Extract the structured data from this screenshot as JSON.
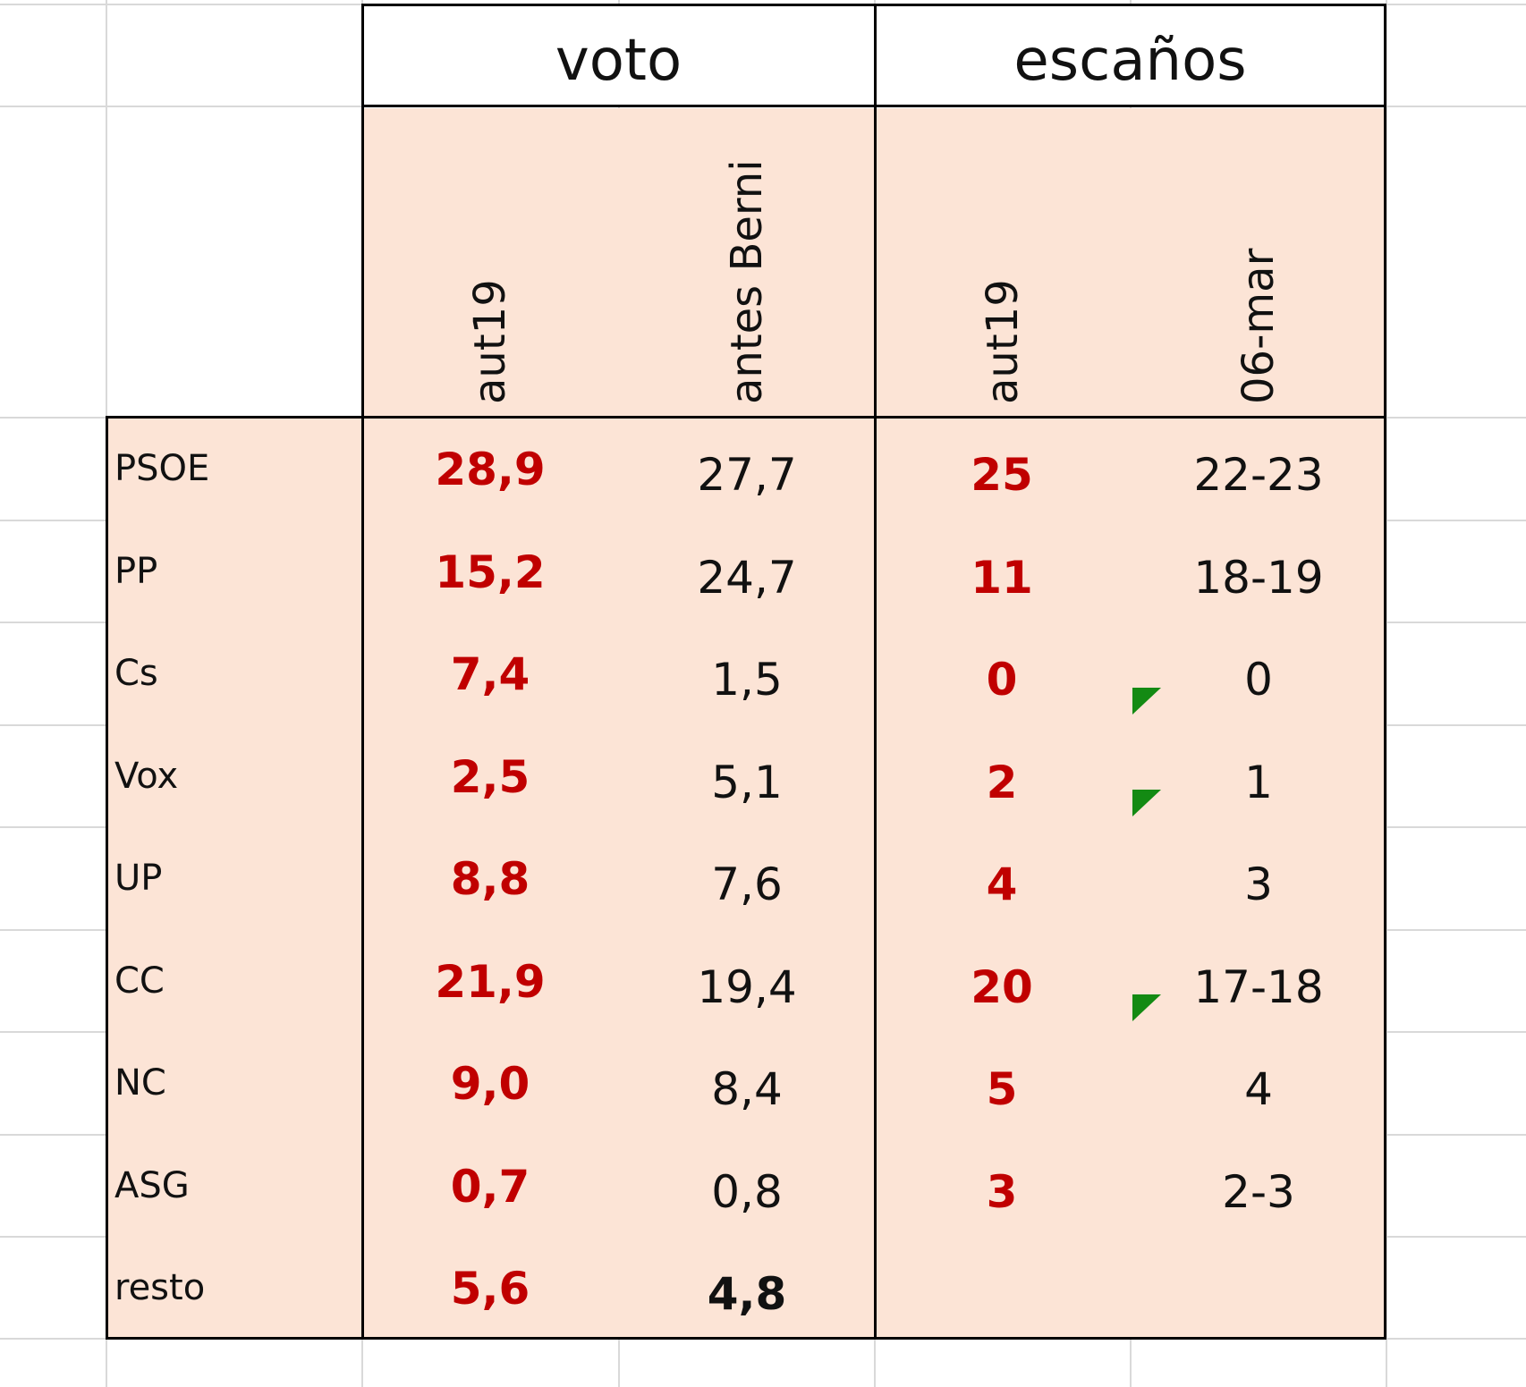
{
  "headers": {
    "voto": "voto",
    "escanos": "escaños",
    "cols": [
      "aut19",
      "antes Berni",
      "aut19",
      "06-mar"
    ]
  },
  "rows": [
    {
      "party": "PSOE",
      "voto_aut19": "28,9",
      "voto_antes": "27,7",
      "esc_aut19": "25",
      "esc_06mar": "22-23",
      "comment": false,
      "antes_bold": false
    },
    {
      "party": "PP",
      "voto_aut19": "15,2",
      "voto_antes": "24,7",
      "esc_aut19": "11",
      "esc_06mar": "18-19",
      "comment": false,
      "antes_bold": false
    },
    {
      "party": "Cs",
      "voto_aut19": "7,4",
      "voto_antes": "1,5",
      "esc_aut19": "0",
      "esc_06mar": "0",
      "comment": false,
      "antes_bold": false
    },
    {
      "party": "Vox",
      "voto_aut19": "2,5",
      "voto_antes": "5,1",
      "esc_aut19": "2",
      "esc_06mar": "1",
      "comment": true,
      "antes_bold": false
    },
    {
      "party": "UP",
      "voto_aut19": "8,8",
      "voto_antes": "7,6",
      "esc_aut19": "4",
      "esc_06mar": "3",
      "comment": true,
      "antes_bold": false
    },
    {
      "party": "CC",
      "voto_aut19": "21,9",
      "voto_antes": "19,4",
      "esc_aut19": "20",
      "esc_06mar": "17-18",
      "comment": false,
      "antes_bold": false
    },
    {
      "party": "NC",
      "voto_aut19": "9,0",
      "voto_antes": "8,4",
      "esc_aut19": "5",
      "esc_06mar": "4",
      "comment": true,
      "antes_bold": false
    },
    {
      "party": "ASG",
      "voto_aut19": "0,7",
      "voto_antes": "0,8",
      "esc_aut19": "3",
      "esc_06mar": "2-3",
      "comment": false,
      "antes_bold": false
    },
    {
      "party": "resto",
      "voto_aut19": "5,6",
      "voto_antes": "4,8",
      "esc_aut19": "",
      "esc_06mar": "",
      "comment": false,
      "antes_bold": true
    }
  ],
  "colors": {
    "cell_fill": "#fce4d6",
    "highlight_text": "#c00000",
    "comment_marker": "#138a13",
    "gridline": "#d9d9d9"
  }
}
